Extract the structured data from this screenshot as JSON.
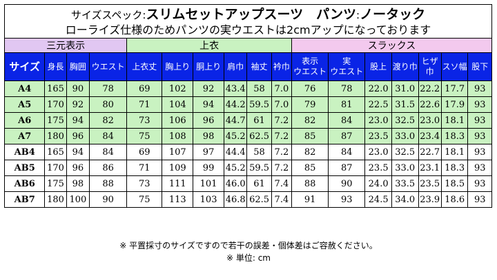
{
  "title": {
    "prefix": "サイズスペック:",
    "product": "スリムセットアップスーツ　パンツ",
    "sep": ":",
    "type": "ノータック",
    "subtitle": "ローライズ仕様のためパンツの実ウエストは2cmアップになっております"
  },
  "groups": {
    "sangen": "三元表示",
    "uwagi": "上衣",
    "slacks": "スラックス"
  },
  "headers": [
    "サイズ",
    "身長",
    "胸囲",
    "ウエスト",
    "上衣丈",
    "胸上り",
    "胴上り",
    "肩巾",
    "袖丈",
    "衿巾",
    "表示ウエスト",
    "実ウエスト",
    "股上",
    "渡り巾",
    "ヒザ巾",
    "スソ幅",
    "股下"
  ],
  "rows": [
    [
      "A4",
      "165",
      "90",
      "78",
      "69",
      "102",
      "92",
      "43.4",
      "58",
      "7.0",
      "76",
      "78",
      "22.0",
      "31.0",
      "22.2",
      "17.7",
      "93"
    ],
    [
      "A5",
      "170",
      "92",
      "80",
      "71",
      "104",
      "94",
      "44.2",
      "59.5",
      "7.0",
      "79",
      "81",
      "22.5",
      "31.5",
      "22.6",
      "17.9",
      "93"
    ],
    [
      "A6",
      "175",
      "94",
      "82",
      "73",
      "106",
      "96",
      "44.7",
      "61",
      "7.2",
      "82",
      "84",
      "23.0",
      "32.5",
      "23.0",
      "18.1",
      "93"
    ],
    [
      "A7",
      "180",
      "96",
      "84",
      "75",
      "108",
      "98",
      "45.2",
      "62.5",
      "7.2",
      "85",
      "87",
      "23.5",
      "33.0",
      "23.4",
      "18.3",
      "93"
    ],
    [
      "AB4",
      "165",
      "94",
      "84",
      "69",
      "107",
      "97",
      "44.4",
      "58",
      "7.2",
      "82",
      "84",
      "23.0",
      "32.5",
      "22.7",
      "18.1",
      "93"
    ],
    [
      "AB5",
      "170",
      "96",
      "86",
      "71",
      "109",
      "99",
      "45.2",
      "59.5",
      "7.2",
      "85",
      "87",
      "23.5",
      "33.0",
      "23.1",
      "18.3",
      "93"
    ],
    [
      "AB6",
      "175",
      "98",
      "88",
      "73",
      "111",
      "101",
      "46.0",
      "61",
      "7.4",
      "88",
      "90",
      "24.0",
      "33.5",
      "23.5",
      "18.5",
      "93"
    ],
    [
      "AB7",
      "180",
      "100",
      "90",
      "75",
      "113",
      "103",
      "46.8",
      "62.5",
      "7.4",
      "91",
      "93",
      "24.5",
      "34.0",
      "23.9",
      "18.6",
      "93"
    ]
  ],
  "notes": {
    "line1": "※ 平置採寸のサイズですので若干の誤差・個体差はご容赦ください。",
    "line2": "※ 単位: cm"
  },
  "colors": {
    "header_blue": "#0a24e6",
    "green": "#c9f2c1",
    "purple": "#e1c7f2",
    "pink": "#f3c9ee"
  }
}
